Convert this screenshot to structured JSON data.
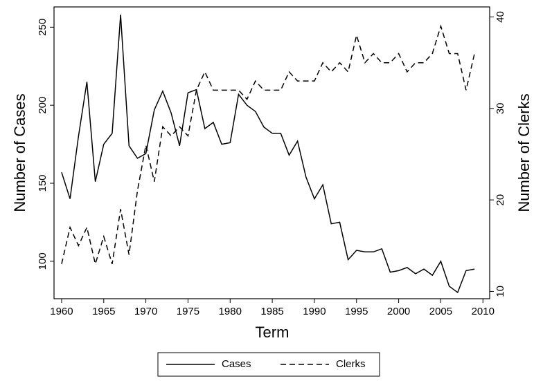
{
  "chart_data": {
    "type": "line",
    "xlabel": "Term",
    "ylabel": "Number of Cases",
    "y2label": "Number of Clerks",
    "x": [
      1960,
      1961,
      1962,
      1963,
      1964,
      1965,
      1966,
      1967,
      1968,
      1969,
      1970,
      1971,
      1972,
      1973,
      1974,
      1975,
      1976,
      1977,
      1978,
      1979,
      1980,
      1981,
      1982,
      1983,
      1984,
      1985,
      1986,
      1987,
      1988,
      1989,
      1990,
      1991,
      1992,
      1993,
      1994,
      1995,
      1996,
      1997,
      1998,
      1999,
      2000,
      2001,
      2002,
      2003,
      2004,
      2005,
      2006,
      2007,
      2008,
      2009
    ],
    "series": [
      {
        "name": "Cases",
        "color": "#000000",
        "dash": "none",
        "axis": "y",
        "values": [
          157,
          140,
          180,
          215,
          151,
          175,
          182,
          258,
          174,
          166,
          169,
          197,
          209,
          195,
          174,
          208,
          210,
          185,
          189,
          175,
          176,
          207,
          200,
          196,
          186,
          182,
          182,
          168,
          177,
          154,
          140,
          149,
          124,
          125,
          101,
          107,
          106,
          106,
          108,
          93,
          94,
          96,
          92,
          95,
          91,
          100,
          84,
          80,
          94,
          95
        ]
      },
      {
        "name": "Clerks",
        "color": "#000000",
        "dash": "8,5",
        "axis": "y2",
        "values": [
          13,
          17,
          15,
          17,
          13,
          16,
          13,
          19,
          14,
          21,
          26,
          22,
          28,
          27,
          28,
          27,
          32,
          34,
          32,
          32,
          32,
          32,
          31,
          33,
          32,
          32,
          32,
          34,
          33,
          33,
          33,
          35,
          34,
          35,
          34,
          38,
          35,
          36,
          35,
          35,
          36,
          34,
          35,
          35,
          36,
          39,
          36,
          36,
          32,
          36
        ]
      }
    ],
    "xlim": [
      1959.1,
      2010.8
    ],
    "xticks": [
      1960,
      1965,
      1970,
      1975,
      1980,
      1985,
      1990,
      1995,
      2000,
      2005,
      2010
    ],
    "ylim": [
      76,
      263
    ],
    "yticks": [
      100,
      150,
      200,
      250
    ],
    "y2lim": [
      9.2,
      41.1
    ],
    "y2ticks": [
      10,
      20,
      30,
      40
    ],
    "legend": "bottom"
  }
}
